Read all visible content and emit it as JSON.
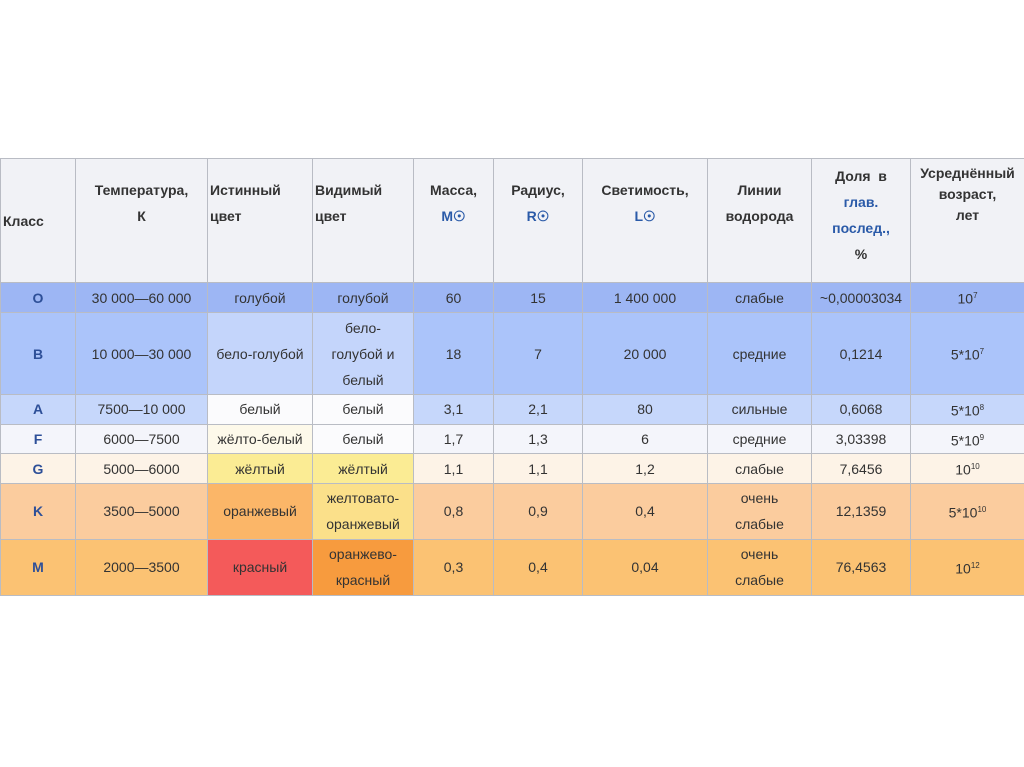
{
  "headers": [
    {
      "text": "Класс"
    },
    {
      "text": "Температура,",
      "unit": "К"
    },
    {
      "text": "Истинный",
      "unit_plain": "цвет"
    },
    {
      "text": "Видимый",
      "unit_plain": "цвет"
    },
    {
      "text": "Масса,",
      "unit": "M☉"
    },
    {
      "text": "Радиус,",
      "unit": "R☉"
    },
    {
      "text": "Светимость,",
      "unit": "L☉"
    },
    {
      "text": "Линии",
      "unit_plain": "водорода"
    },
    {
      "text": "Доля  в",
      "unit": "глав.",
      "unit2": "послед.,",
      "unit3": "%"
    },
    {
      "text": "Усреднённый",
      "unit_plain": "возраст,",
      "unit3": "лет"
    }
  ],
  "rows": [
    {
      "cls": "O",
      "temp": "30 000—60 000",
      "true_color": "голубой",
      "visible_color": "голубой",
      "mass": "60",
      "radius": "15",
      "lum": "1 400 000",
      "lines": "слабые",
      "share": "~0,00003034",
      "age_base": "10",
      "age_exp": "7",
      "bg": "#9db6f4",
      "true_bg": "#9db6f4",
      "vis_bg": "#9db6f4",
      "h": 30
    },
    {
      "cls": "B",
      "temp": "10 000—30 000",
      "true_color": "бело-голубой",
      "visible_color": "бело-голубой и белый",
      "mass": "18",
      "radius": "7",
      "lum": "20 000",
      "lines": "средние",
      "share": "0,1214",
      "age_base": "5*10",
      "age_exp": "7",
      "bg": "#abc4fa",
      "true_bg": "#c4d5fb",
      "vis_bg": "#c4d5fb",
      "h": 82
    },
    {
      "cls": "A",
      "temp": "7500—10 000",
      "true_color": "белый",
      "visible_color": "белый",
      "mass": "3,1",
      "radius": "2,1",
      "lum": "80",
      "lines": "сильные",
      "share": "0,6068",
      "age_base": "5*10",
      "age_exp": "8",
      "bg": "#c6d7fb",
      "true_bg": "#fbfbfd",
      "vis_bg": "#fbfbfd",
      "h": 29
    },
    {
      "cls": "F",
      "temp": "6000—7500",
      "true_color": "жёлто-белый",
      "visible_color": "белый",
      "mass": "1,7",
      "radius": "1,3",
      "lum": "6",
      "lines": "средние",
      "share": "3,03398",
      "age_base": "5*10",
      "age_exp": "9",
      "bg": "#f4f5fb",
      "true_bg": "#fdf9ea",
      "vis_bg": "#fbfbfd",
      "h": 29
    },
    {
      "cls": "G",
      "temp": "5000—6000",
      "true_color": "жёлтый",
      "visible_color": "жёлтый",
      "mass": "1,1",
      "radius": "1,1",
      "lum": "1,2",
      "lines": "слабые",
      "share": "7,6456",
      "age_base": "10",
      "age_exp": "10",
      "bg": "#fdf3e7",
      "true_bg": "#fbec94",
      "vis_bg": "#fbec94",
      "h": 29
    },
    {
      "cls": "K",
      "temp": "3500—5000",
      "true_color": "оранжевый",
      "visible_color": "желтовато-оранжевый",
      "mass": "0,8",
      "radius": "0,9",
      "lum": "0,4",
      "lines": "очень слабые",
      "share": "12,1359",
      "age_base": "5*10",
      "age_exp": "10",
      "bg": "#fbcc9e",
      "true_bg": "#fbb668",
      "vis_bg": "#fbe08a",
      "h": 56
    },
    {
      "cls": "M",
      "temp": "2000—3500",
      "true_color": "красный",
      "visible_color": "оранжево-красный",
      "mass": "0,3",
      "radius": "0,4",
      "lum": "0,04",
      "lines": "очень слабые",
      "share": "76,4563",
      "age_base": "10",
      "age_exp": "12",
      "bg": "#fbc273",
      "true_bg": "#f45a5a",
      "vis_bg": "#f79b3e",
      "h": 56
    }
  ]
}
